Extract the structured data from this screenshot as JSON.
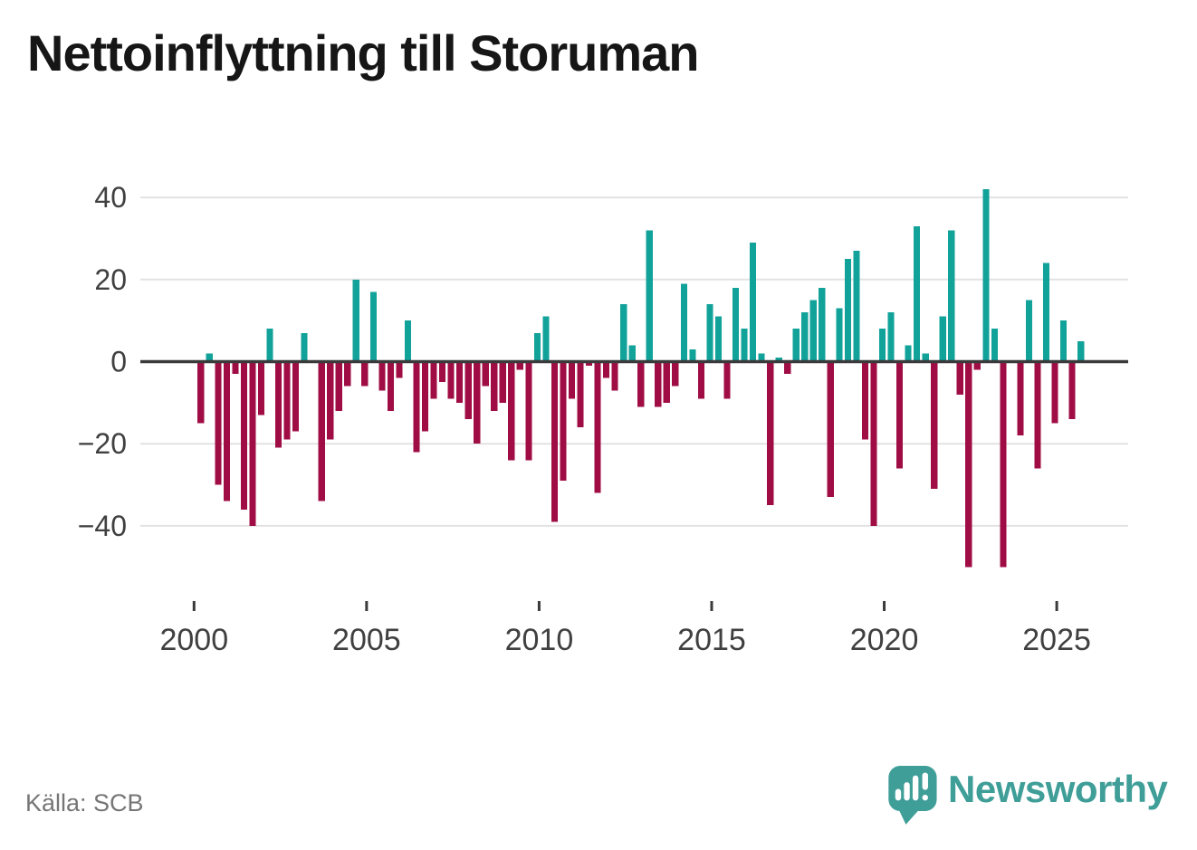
{
  "title": "Nettoinflyttning till Storuman",
  "source": "Källa: SCB",
  "logo_text": "Newsworthy",
  "colors": {
    "positive": "#11a29a",
    "negative": "#a00d45",
    "zero_line": "#3a3a3a",
    "gridline": "#e2e2e2",
    "axis_text": "#404040",
    "title_text": "#161616",
    "source_text": "#767676",
    "brand_teal": "#3f9e98"
  },
  "chart_data": {
    "type": "bar",
    "title": "Nettoinflyttning till Storuman",
    "frequency": "quarterly",
    "start": "2000-Q1",
    "end": "2025-Q3",
    "values": [
      -15,
      2,
      -30,
      -34,
      -3,
      -36,
      -40,
      -13,
      8,
      -21,
      -19,
      -17,
      7,
      0,
      -34,
      -19,
      -12,
      -6,
      20,
      -6,
      17,
      -7,
      -12,
      -4,
      10,
      -22,
      -17,
      -9,
      -5,
      -9,
      -10,
      -14,
      -20,
      -6,
      -12,
      -10,
      -24,
      -2,
      -24,
      7,
      11,
      -39,
      -29,
      -9,
      -16,
      -1,
      -32,
      -4,
      -7,
      14,
      4,
      -11,
      32,
      -11,
      -10,
      -6,
      19,
      3,
      -9,
      14,
      11,
      -9,
      18,
      8,
      29,
      2,
      -35,
      1,
      -3,
      8,
      12,
      15,
      18,
      -33,
      13,
      25,
      27,
      -19,
      -40,
      8,
      12,
      -26,
      4,
      33,
      2,
      -31,
      11,
      32,
      -8,
      -50,
      -2,
      42,
      8,
      -50,
      0,
      -18,
      15,
      -26,
      24,
      -15,
      10,
      -14,
      5
    ],
    "yticks": [
      40,
      20,
      0,
      -20,
      -40
    ],
    "xticks": [
      2000,
      2005,
      2010,
      2015,
      2020,
      2025
    ],
    "ylim": [
      -52,
      44
    ],
    "grid": "horizontal",
    "legend": "none",
    "positive_color": "#11a29a",
    "negative_color": "#a00d45"
  }
}
